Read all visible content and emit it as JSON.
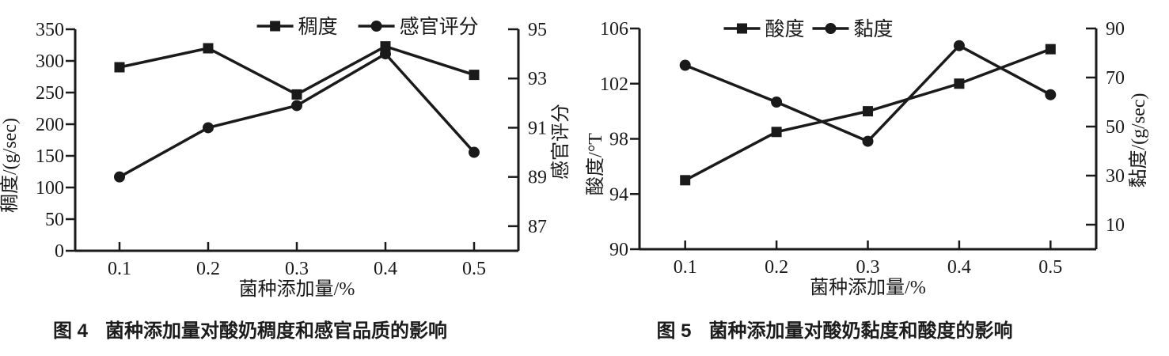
{
  "figures": [
    {
      "caption_label": "图 4",
      "caption_text": "菌种添加量对酸奶稠度和感官品质的影响"
    },
    {
      "caption_label": "图 5",
      "caption_text": "菌种添加量对酸奶黏度和酸度的影响"
    }
  ],
  "chart_data": [
    {
      "type": "line",
      "title": "",
      "xlabel": "菌种添加量/%",
      "x": [
        0.1,
        0.2,
        0.3,
        0.4,
        0.5
      ],
      "x_tick_labels": [
        "0.1",
        "0.2",
        "0.3",
        "0.4",
        "0.5"
      ],
      "left_axis": {
        "label": "稠度/(g/sec)",
        "min": 0,
        "max": 350,
        "ticks": [
          0,
          50,
          100,
          150,
          200,
          250,
          300,
          350
        ]
      },
      "right_axis": {
        "label": "感官评分",
        "min": 86,
        "max": 95,
        "ticks": [
          87,
          89,
          91,
          93,
          95
        ]
      },
      "series": [
        {
          "name": "稠度",
          "axis": "left",
          "marker": "square",
          "values": [
            290,
            320,
            247,
            323,
            278
          ]
        },
        {
          "name": "感官评分",
          "axis": "right",
          "marker": "circle",
          "values": [
            89.0,
            91.0,
            91.9,
            94.0,
            90.0
          ]
        }
      ],
      "legend": {
        "position": "top-inside",
        "center_frac": 0.66
      },
      "grid": false,
      "line_color": "#1a1a1a"
    },
    {
      "type": "line",
      "title": "",
      "xlabel": "菌种添加量/%",
      "x": [
        0.1,
        0.2,
        0.3,
        0.4,
        0.5
      ],
      "x_tick_labels": [
        "0.1",
        "0.2",
        "0.3",
        "0.4",
        "0.5"
      ],
      "left_axis": {
        "label": "酸度/°T",
        "min": 90,
        "max": 106,
        "ticks": [
          90,
          94,
          98,
          102,
          106
        ]
      },
      "right_axis": {
        "label": "黏度/(g/sec)",
        "min": 0,
        "max": 90,
        "ticks": [
          10,
          30,
          50,
          70,
          90
        ]
      },
      "series": [
        {
          "name": "酸度",
          "axis": "left",
          "marker": "square",
          "values": [
            95,
            98.5,
            100,
            102,
            104.5
          ]
        },
        {
          "name": "黏度",
          "axis": "right",
          "marker": "circle",
          "values": [
            75,
            60,
            44,
            83,
            63
          ]
        }
      ],
      "legend": {
        "position": "top-inside",
        "center_frac": 0.37
      },
      "grid": false,
      "line_color": "#1a1a1a"
    }
  ]
}
